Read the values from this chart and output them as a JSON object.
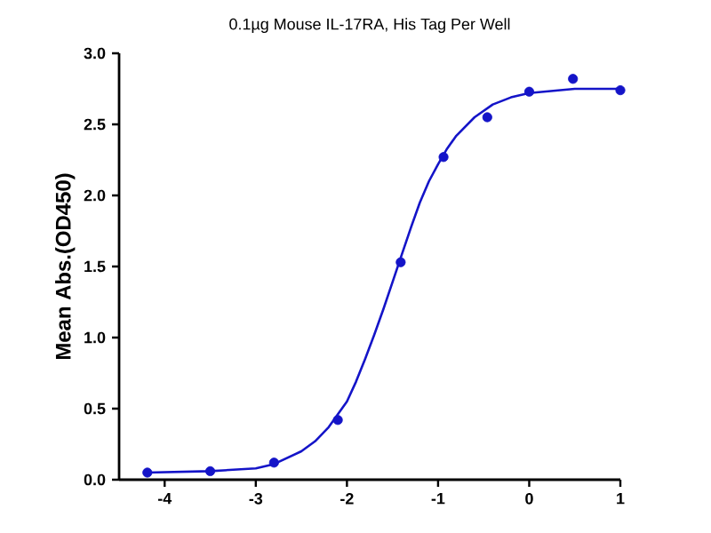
{
  "chart_data": {
    "type": "scatter",
    "title": "0.1µg Mouse IL-17RA, His Tag Per Well",
    "ylabel": "Mean Abs.(OD450)",
    "xlim": [
      -4.5,
      1
    ],
    "xticks": [
      -4,
      -3,
      -2,
      -1,
      0,
      1
    ],
    "ylim": [
      0,
      3
    ],
    "yticks": [
      {
        "value": 0,
        "label": "0.0"
      },
      {
        "value": 0.5,
        "label": "0.5"
      },
      {
        "value": 1,
        "label": "1.0"
      },
      {
        "value": 1.5,
        "label": "1.5"
      },
      {
        "value": 2,
        "label": "2.0"
      },
      {
        "value": 2.5,
        "label": "2.5"
      },
      {
        "value": 3,
        "label": "3.0"
      }
    ],
    "grid": false,
    "series": [
      {
        "color": "#1414c8",
        "x": [
          -4.19,
          -3.5,
          -2.8,
          -2.1,
          -1.41,
          -0.94,
          -0.46,
          0,
          0.48,
          1
        ],
        "values": [
          0.05,
          0.06,
          0.12,
          0.42,
          1.53,
          2.27,
          2.55,
          2.73,
          2.82,
          2.74
        ]
      },
      {
        "type": "line",
        "marker": "none",
        "color": "#1414c8",
        "line_style": "solid",
        "x": [
          -4.2,
          -3.5,
          -3.0,
          -2.8,
          -2.5,
          -2.35,
          -2.2,
          -2.0,
          -1.9,
          -1.8,
          -1.7,
          -1.6,
          -1.5,
          -1.4,
          -1.3,
          -1.2,
          -1.1,
          -1.0,
          -0.9,
          -0.8,
          -0.6,
          -0.4,
          -0.2,
          0,
          0.5,
          1
        ],
        "values": [
          0.05,
          0.06,
          0.08,
          0.11,
          0.2,
          0.27,
          0.37,
          0.55,
          0.69,
          0.85,
          1.02,
          1.2,
          1.39,
          1.58,
          1.77,
          1.95,
          2.1,
          2.22,
          2.33,
          2.42,
          2.55,
          2.64,
          2.69,
          2.72,
          2.75,
          2.75
        ]
      }
    ]
  }
}
